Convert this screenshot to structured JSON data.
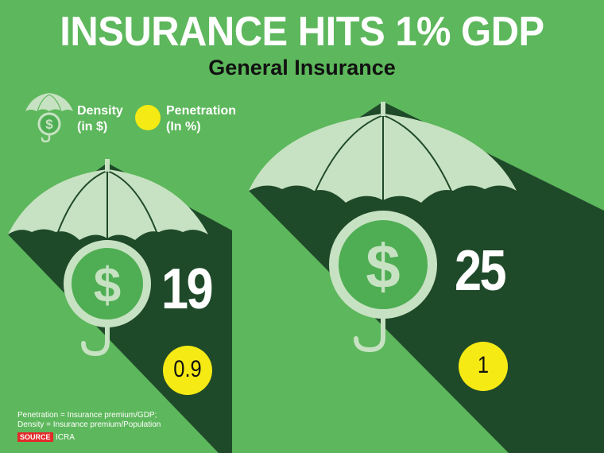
{
  "title": "INSURANCE HITS 1% GDP",
  "subtitle": "General Insurance",
  "legend": {
    "density_label": "Density",
    "density_unit": "(in $)",
    "penetration_label": "Penetration",
    "penetration_unit": "(In %)"
  },
  "figures": [
    {
      "density": "19",
      "penetration": "0.9"
    },
    {
      "density": "25",
      "penetration": "1"
    }
  ],
  "footnote": {
    "line1": "Penetration = Insurance premium/GDP;",
    "line2": "Density = Insurance premium/Population"
  },
  "source": {
    "label": "SOURCE",
    "value": "ICRA"
  },
  "colors": {
    "background": "#5db75c",
    "shadow": "#1f4a2a",
    "canopy": "#c7e2c2",
    "coin": "#4fae54",
    "penetration_circle": "#f5ea14"
  }
}
